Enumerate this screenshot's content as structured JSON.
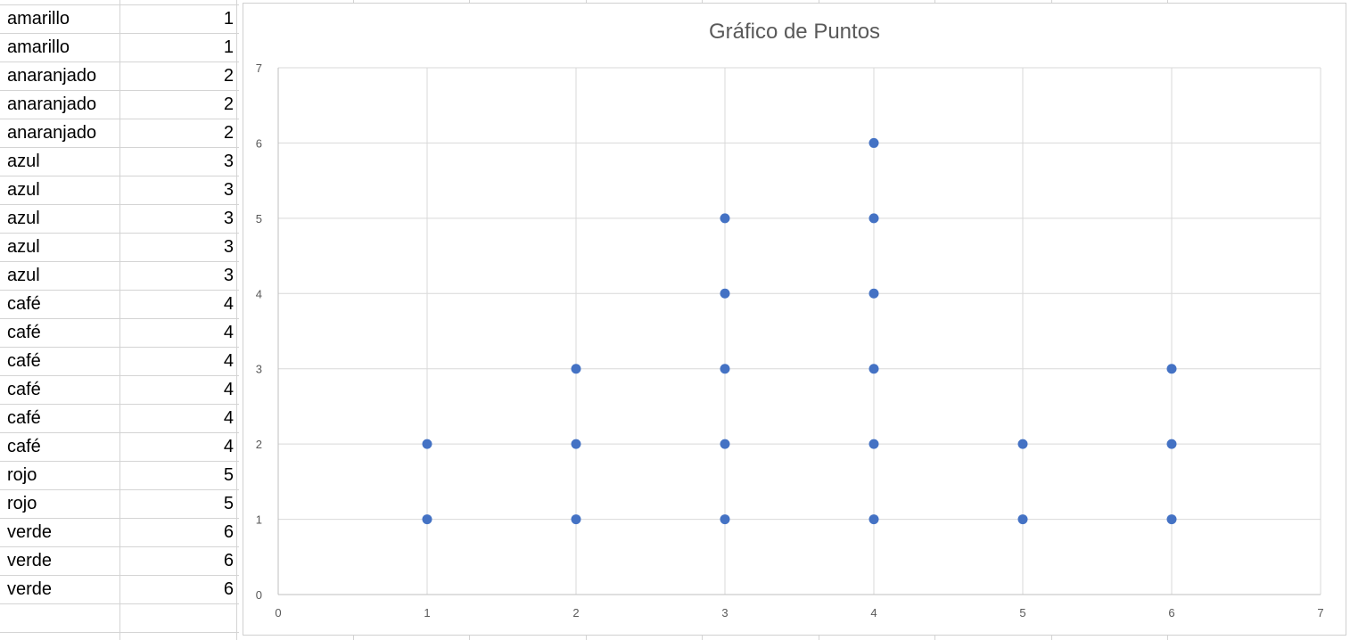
{
  "sheet": {
    "rows": [
      {
        "name": "amarillo",
        "value": "1"
      },
      {
        "name": "amarillo",
        "value": "1"
      },
      {
        "name": "anaranjado",
        "value": "2"
      },
      {
        "name": "anaranjado",
        "value": "2"
      },
      {
        "name": "anaranjado",
        "value": "2"
      },
      {
        "name": "azul",
        "value": "3"
      },
      {
        "name": "azul",
        "value": "3"
      },
      {
        "name": "azul",
        "value": "3"
      },
      {
        "name": "azul",
        "value": "3"
      },
      {
        "name": "azul",
        "value": "3"
      },
      {
        "name": "café",
        "value": "4"
      },
      {
        "name": "café",
        "value": "4"
      },
      {
        "name": "café",
        "value": "4"
      },
      {
        "name": "café",
        "value": "4"
      },
      {
        "name": "café",
        "value": "4"
      },
      {
        "name": "café",
        "value": "4"
      },
      {
        "name": "rojo",
        "value": "5"
      },
      {
        "name": "rojo",
        "value": "5"
      },
      {
        "name": "verde",
        "value": "6"
      },
      {
        "name": "verde",
        "value": "6"
      },
      {
        "name": "verde",
        "value": "6"
      }
    ]
  },
  "chart_data": {
    "type": "scatter",
    "title": "Gráfico de Puntos",
    "xlabel": "",
    "ylabel": "",
    "xlim": [
      0,
      7
    ],
    "ylim": [
      0,
      7
    ],
    "xticks": [
      "0",
      "1",
      "2",
      "3",
      "4",
      "5",
      "6",
      "7"
    ],
    "yticks": [
      "0",
      "1",
      "2",
      "3",
      "4",
      "5",
      "6",
      "7"
    ],
    "grid": true,
    "marker_color": "#4472c4",
    "points": [
      {
        "x": 1,
        "y": 1
      },
      {
        "x": 1,
        "y": 2
      },
      {
        "x": 2,
        "y": 1
      },
      {
        "x": 2,
        "y": 2
      },
      {
        "x": 2,
        "y": 3
      },
      {
        "x": 3,
        "y": 1
      },
      {
        "x": 3,
        "y": 2
      },
      {
        "x": 3,
        "y": 3
      },
      {
        "x": 3,
        "y": 4
      },
      {
        "x": 3,
        "y": 5
      },
      {
        "x": 4,
        "y": 1
      },
      {
        "x": 4,
        "y": 2
      },
      {
        "x": 4,
        "y": 3
      },
      {
        "x": 4,
        "y": 4
      },
      {
        "x": 4,
        "y": 5
      },
      {
        "x": 4,
        "y": 6
      },
      {
        "x": 5,
        "y": 1
      },
      {
        "x": 5,
        "y": 2
      },
      {
        "x": 6,
        "y": 1
      },
      {
        "x": 6,
        "y": 2
      },
      {
        "x": 6,
        "y": 3
      }
    ]
  }
}
